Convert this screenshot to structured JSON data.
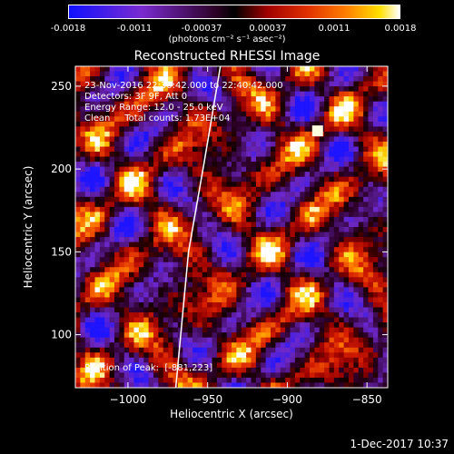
{
  "colorbar": {
    "ticks": [
      "-0.0018",
      "-0.0011",
      "-0.00037",
      "0.00037",
      "0.0011",
      "0.0018"
    ],
    "unit": "(photons cm⁻² s⁻¹ asec⁻²)"
  },
  "chart_data": {
    "type": "heatmap",
    "title": "Reconstructed RHESSI Image",
    "xlabel": "Heliocentric X (arcsec)",
    "ylabel": "Heliocentric Y (arcsec)",
    "xlim": [
      -1033,
      -837
    ],
    "ylim": [
      68,
      262
    ],
    "xticks": [
      -1000,
      -950,
      -900,
      -850
    ],
    "xtick_labels": [
      "−1000",
      "−950",
      "−900",
      "−850"
    ],
    "yticks": [
      100,
      150,
      200,
      250
    ],
    "ytick_labels": [
      "100",
      "150",
      "200",
      "250"
    ],
    "value_range": [
      -0.0018,
      0.0018
    ],
    "limb_curve": [
      [
        -970,
        68
      ],
      [
        -962,
        150
      ],
      [
        -952,
        205
      ],
      [
        -942,
        262
      ]
    ],
    "peak": {
      "x": -881,
      "y": 223
    },
    "annotations": [
      "23-Nov-2016 22:30:42.000 to 22:40:42.000",
      "Detectors: 3F 9F, Att 0",
      "Energy Range: 12.0 - 25.0 keV",
      "Clean     Total counts: 1.73E+04"
    ],
    "peak_label": "Position of Peak:  [-881,223]"
  },
  "footer": {
    "date": "1-Dec-2017 10:37"
  }
}
